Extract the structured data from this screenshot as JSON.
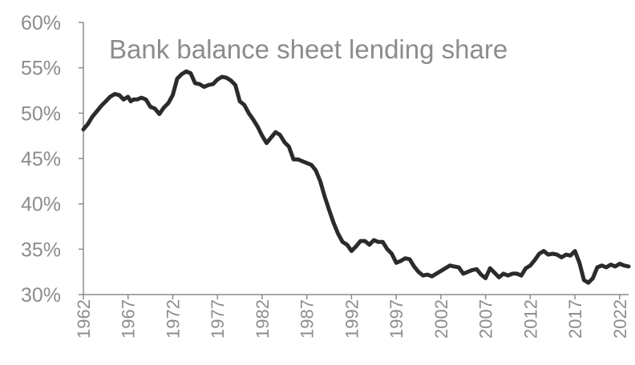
{
  "chart_data": {
    "type": "line",
    "title": "Bank balance sheet lending share",
    "xlabel": "",
    "ylabel": "",
    "xlim": [
      1962,
      2023
    ],
    "ylim": [
      30,
      60
    ],
    "y_ticks": [
      30,
      35,
      40,
      45,
      50,
      55,
      60
    ],
    "y_tick_labels": [
      "30%",
      "35%",
      "40%",
      "45%",
      "50%",
      "55%",
      "60%"
    ],
    "x_ticks": [
      1962,
      1967,
      1972,
      1977,
      1982,
      1987,
      1992,
      1997,
      2002,
      2007,
      2012,
      2017,
      2022
    ],
    "x_tick_labels": [
      "1962",
      "1967",
      "1972",
      "1977",
      "1982",
      "1987",
      "1992",
      "1997",
      "2002",
      "2007",
      "2012",
      "2017",
      "2022"
    ],
    "grid": false,
    "line_color": "#2b2b2b",
    "axis_color": "#8c8c8c",
    "series": [
      {
        "name": "",
        "x": [
          1962.0,
          1962.5,
          1963.0,
          1963.5,
          1964.0,
          1964.5,
          1965.0,
          1965.5,
          1966.0,
          1966.5,
          1967.0,
          1967.3,
          1967.6,
          1968.0,
          1968.5,
          1969.0,
          1969.5,
          1970.0,
          1970.5,
          1971.0,
          1971.5,
          1972.0,
          1972.5,
          1973.0,
          1973.5,
          1974.0,
          1974.5,
          1975.0,
          1975.5,
          1976.0,
          1976.5,
          1977.0,
          1977.5,
          1978.0,
          1978.5,
          1979.0,
          1979.5,
          1980.0,
          1980.5,
          1981.0,
          1981.5,
          1982.0,
          1982.5,
          1983.0,
          1983.5,
          1984.0,
          1984.5,
          1985.0,
          1985.5,
          1986.0,
          1986.5,
          1987.0,
          1987.5,
          1988.0,
          1988.5,
          1989.0,
          1989.5,
          1990.0,
          1990.5,
          1991.0,
          1991.5,
          1992.0,
          1992.5,
          1993.0,
          1993.5,
          1994.0,
          1994.5,
          1995.0,
          1995.5,
          1996.0,
          1996.5,
          1997.0,
          1997.5,
          1998.0,
          1998.5,
          1999.0,
          1999.5,
          2000.0,
          2000.5,
          2001.0,
          2001.5,
          2002.0,
          2002.5,
          2003.0,
          2003.5,
          2004.0,
          2004.5,
          2005.0,
          2005.5,
          2006.0,
          2006.5,
          2007.0,
          2007.5,
          2008.0,
          2008.5,
          2009.0,
          2009.5,
          2010.0,
          2010.5,
          2011.0,
          2011.5,
          2012.0,
          2012.5,
          2013.0,
          2013.5,
          2014.0,
          2014.5,
          2015.0,
          2015.5,
          2016.0,
          2016.5,
          2017.0,
          2017.5,
          2018.0,
          2018.5,
          2019.0,
          2019.5,
          2020.0,
          2020.5,
          2021.0,
          2021.5,
          2022.0,
          2022.5,
          2023.0
        ],
        "values": [
          48.2,
          48.8,
          49.6,
          50.2,
          50.8,
          51.3,
          51.8,
          52.1,
          52.0,
          51.5,
          51.8,
          51.3,
          51.5,
          51.5,
          51.7,
          51.5,
          50.7,
          50.5,
          49.9,
          50.6,
          51.1,
          52.0,
          53.8,
          54.3,
          54.6,
          54.4,
          53.3,
          53.2,
          52.9,
          53.1,
          53.2,
          53.7,
          54.0,
          53.9,
          53.6,
          53.1,
          51.3,
          50.9,
          50.0,
          49.3,
          48.5,
          47.5,
          46.7,
          47.3,
          47.9,
          47.6,
          46.8,
          46.3,
          44.9,
          44.9,
          44.7,
          44.5,
          44.3,
          43.7,
          42.5,
          40.8,
          39.3,
          37.9,
          36.7,
          35.8,
          35.5,
          34.8,
          35.3,
          35.9,
          35.9,
          35.5,
          36.0,
          35.8,
          35.8,
          35.0,
          34.5,
          33.5,
          33.7,
          34.0,
          33.9,
          33.1,
          32.5,
          32.1,
          32.2,
          32.0,
          32.3,
          32.6,
          32.9,
          33.2,
          33.1,
          33.0,
          32.3,
          32.5,
          32.7,
          32.8,
          32.2,
          31.8,
          32.9,
          32.4,
          31.9,
          32.3,
          32.1,
          32.3,
          32.3,
          32.1,
          32.9,
          33.2,
          33.8,
          34.5,
          34.8,
          34.4,
          34.5,
          34.4,
          34.1,
          34.4,
          34.3,
          34.8,
          33.5,
          31.6,
          31.3,
          31.8,
          33.0,
          33.2,
          33.0,
          33.3,
          33.1,
          33.4,
          33.2,
          33.1
        ]
      }
    ]
  }
}
